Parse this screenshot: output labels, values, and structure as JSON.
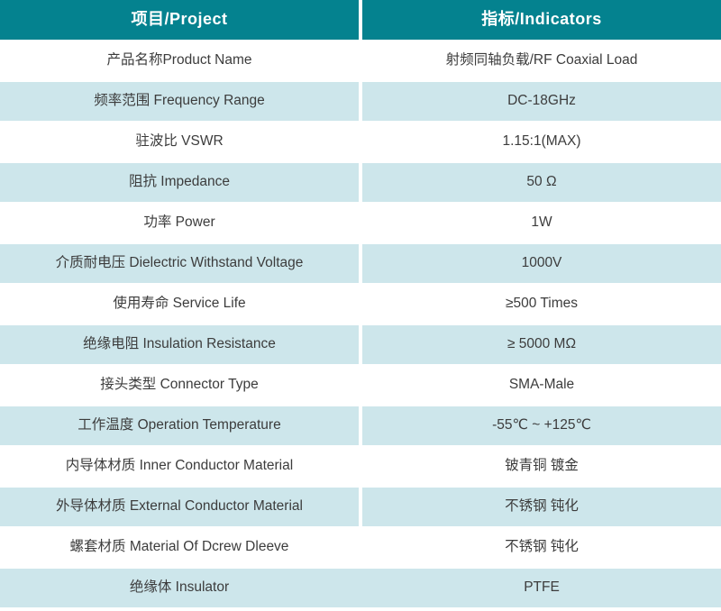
{
  "table": {
    "header": {
      "project": "项目/Project",
      "indicators": "指标/Indicators"
    },
    "rows": [
      {
        "label": "产品名称Product Name",
        "value": "射频同轴负载/RF Coaxial Load"
      },
      {
        "label": "频率范围 Frequency Range",
        "value": "DC-18GHz"
      },
      {
        "label": "驻波比 VSWR",
        "value": "1.15:1(MAX)"
      },
      {
        "label": "阻抗 Impedance",
        "value": "50 Ω"
      },
      {
        "label": "功率 Power",
        "value": "1W"
      },
      {
        "label": "介质耐电压 Dielectric Withstand Voltage",
        "value": "1000V"
      },
      {
        "label": "使用寿命 Service Life",
        "value": "≥500 Times"
      },
      {
        "label": "绝缘电阻 Insulation Resistance",
        "value": "≥ 5000 MΩ"
      },
      {
        "label": "接头类型 Connector Type",
        "value": "SMA-Male"
      },
      {
        "label": "工作温度 Operation Temperature",
        "value": "-55℃ ~ +125℃"
      },
      {
        "label": "内导体材质 Inner Conductor Material",
        "value": "铍青铜 镀金"
      },
      {
        "label": "外导体材质 External Conductor Material",
        "value": "不锈钢 钝化"
      },
      {
        "label": "螺套材质 Material Of Dcrew Dleeve",
        "value": "不锈钢 钝化"
      },
      {
        "label": "绝缘体 Insulator",
        "value": "PTFE"
      }
    ],
    "colors": {
      "header_bg": "#04828F",
      "header_text": "#FFFFFF",
      "row_alt_bg": "#CDE6EB",
      "row_bg": "#FFFFFF",
      "body_text": "#3C3C3C",
      "divider": "#FFFFFF"
    }
  }
}
